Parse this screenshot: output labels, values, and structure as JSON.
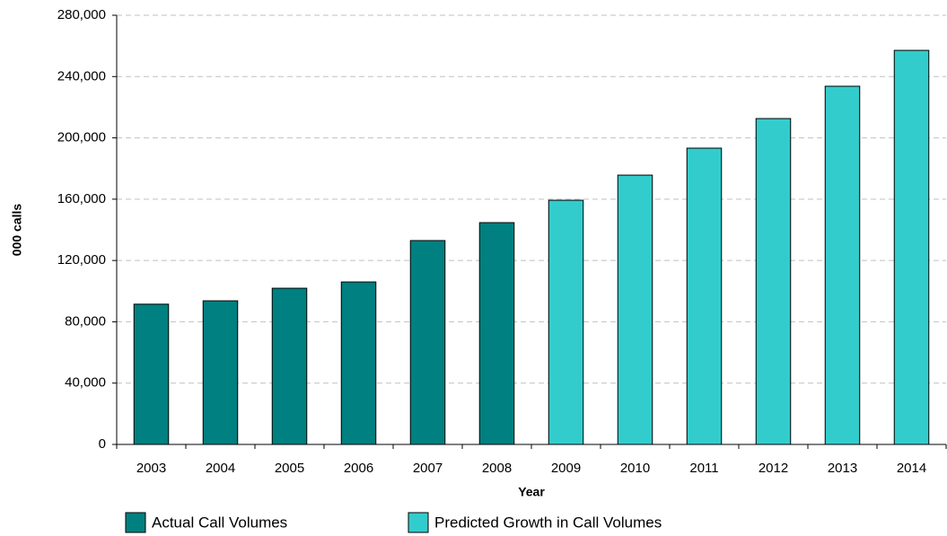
{
  "chart_data": {
    "type": "bar",
    "x_label": "Year",
    "y_label": "000 calls",
    "categories": [
      "2003",
      "2004",
      "2005",
      "2006",
      "2007",
      "2008",
      "2009",
      "2010",
      "2011",
      "2012",
      "2013",
      "2014"
    ],
    "series": [
      {
        "name": "Actual Call Volumes",
        "color": "#008080",
        "values": [
          91500,
          93700,
          101900,
          106000,
          133000,
          144700,
          null,
          null,
          null,
          null,
          null,
          null
        ]
      },
      {
        "name": "Predicted Growth in Call Volumes",
        "color": "#33CCCC",
        "values": [
          null,
          null,
          null,
          null,
          null,
          null,
          159300,
          175700,
          193300,
          212600,
          233700,
          257100
        ]
      }
    ],
    "ylim": [
      0,
      280000
    ],
    "yticks": [
      0,
      {
        "value": 40000,
        "label": "40,000"
      },
      {
        "value": 80000,
        "label": "80,000"
      },
      {
        "value": 120000,
        "label": "120,000"
      },
      {
        "value": 160000,
        "label": "160,000"
      },
      {
        "value": 200000,
        "label": "200,000"
      },
      {
        "value": 240000,
        "label": "240,000"
      },
      {
        "value": 280000,
        "label": "280,000"
      }
    ],
    "grid": true
  }
}
